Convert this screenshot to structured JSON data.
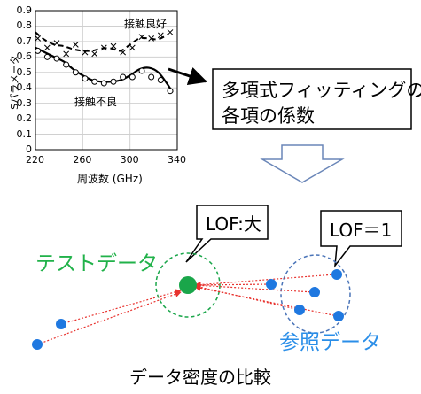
{
  "chart_data": {
    "type": "line",
    "xlabel": "周波数 (GHz)",
    "ylabel": "Sパラメータ",
    "xlim": [
      220,
      340
    ],
    "ylim": [
      0,
      0.9
    ],
    "x_ticks": [
      "220",
      "260",
      "300",
      "340"
    ],
    "y_ticks": [
      "0",
      "0.1",
      "0.2",
      "0.3",
      "0.4",
      "0.5",
      "0.6",
      "0.7",
      "0.8",
      "0.9"
    ],
    "grid": true,
    "series": [
      {
        "name": "接触良好",
        "style": "dashed",
        "marker": "x",
        "curve_x": [
          220,
          228,
          236,
          244,
          252,
          260,
          268,
          276,
          284,
          292,
          300,
          308,
          316,
          324,
          332
        ],
        "curve_y": [
          0.76,
          0.71,
          0.68,
          0.67,
          0.65,
          0.64,
          0.64,
          0.655,
          0.655,
          0.64,
          0.68,
          0.72,
          0.72,
          0.715,
          0.745
        ],
        "points_x": [
          222,
          230,
          238,
          246,
          254,
          262,
          270,
          278,
          286,
          294,
          302,
          310,
          318,
          326,
          334
        ],
        "points_y": [
          0.72,
          0.66,
          0.69,
          0.62,
          0.68,
          0.63,
          0.62,
          0.66,
          0.67,
          0.63,
          0.66,
          0.73,
          0.72,
          0.74,
          0.76
        ]
      },
      {
        "name": "接触不良",
        "style": "solid",
        "marker": "o",
        "curve_x": [
          220,
          228,
          236,
          244,
          252,
          260,
          268,
          276,
          284,
          292,
          300,
          308,
          316,
          324,
          332,
          336
        ],
        "curve_y": [
          0.66,
          0.63,
          0.6,
          0.57,
          0.52,
          0.48,
          0.45,
          0.44,
          0.44,
          0.45,
          0.48,
          0.52,
          0.53,
          0.5,
          0.42,
          0.37
        ],
        "points_x": [
          222,
          230,
          238,
          246,
          254,
          262,
          270,
          278,
          286,
          294,
          302,
          310,
          318,
          326,
          334
        ],
        "points_y": [
          0.64,
          0.6,
          0.59,
          0.55,
          0.5,
          0.46,
          0.44,
          0.43,
          0.44,
          0.47,
          0.47,
          0.51,
          0.47,
          0.45,
          0.38
        ]
      }
    ]
  },
  "callout": {
    "line1": "多項式フィッティングの",
    "line2": "各項の係数"
  },
  "lof": {
    "large_label": "LOF:大",
    "one_label": "LOF＝1",
    "test_data_label": "テストデータ",
    "reference_label": "参照データ",
    "caption": "データ密度の比較"
  },
  "colors": {
    "test": "#1aa64a",
    "reference": "#1f78e0",
    "arrow": "#e8322e",
    "reference_text": "#2a8ee8",
    "test_text": "#21b24a"
  }
}
